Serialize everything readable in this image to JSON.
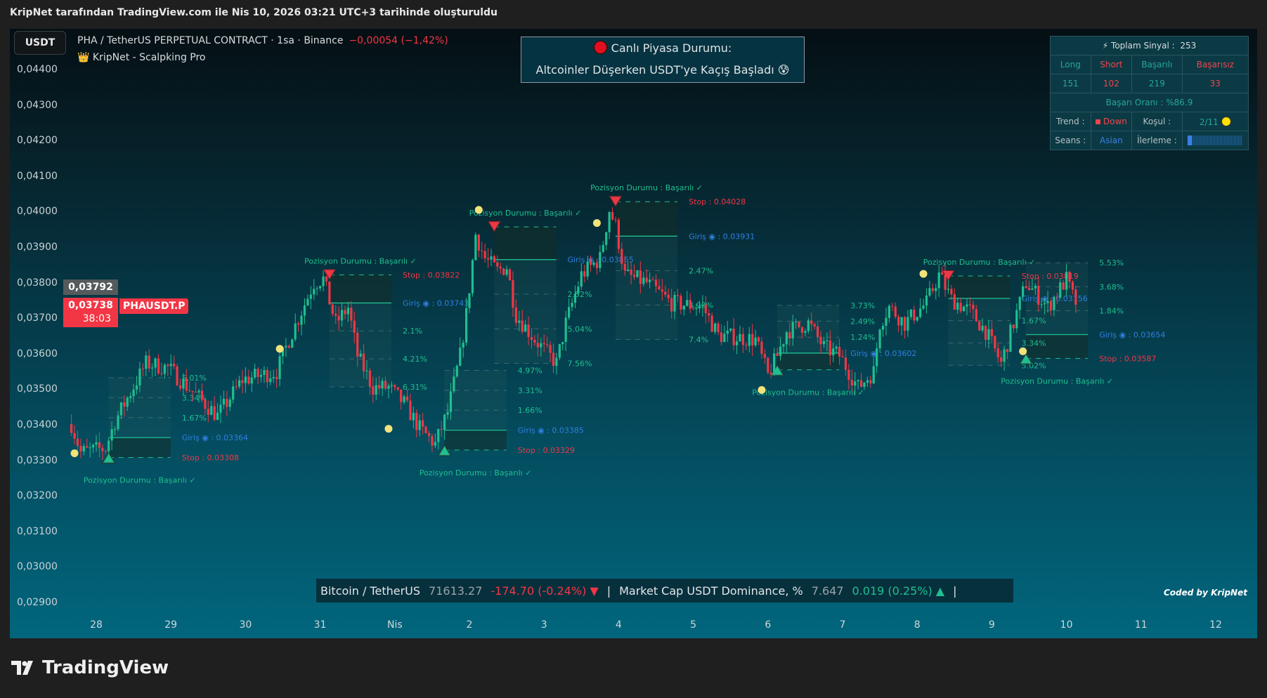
{
  "header": {
    "title": "KripNet tarafından TradingView.com ile Nis 10, 2026 03:21 UTC+3 tarihinde oluşturuldu"
  },
  "chart": {
    "currency_button": "USDT",
    "symbol": "PHA / TetherUS PERPETUAL CONTRACT · 1sa · Binance",
    "change": "−0,00054 (−1,42%)",
    "indicator_icon": "crown-icon",
    "indicator_emoji": "👑",
    "indicator": "KripNet - Scalpking Pro",
    "price_axis": [
      "0,04400",
      "0,04300",
      "0,04200",
      "0,04100",
      "0,04000",
      "0,03900",
      "0,03800",
      "0,03700",
      "0,03600",
      "0,03500",
      "0,03400",
      "0,03300",
      "0,03200",
      "0,03100",
      "0,03000",
      "0,02900"
    ],
    "time_axis": [
      "28",
      "29",
      "30",
      "31",
      "Nis",
      "2",
      "3",
      "4",
      "5",
      "6",
      "7",
      "8",
      "9",
      "10",
      "11",
      "12"
    ],
    "price_tags": {
      "crosshair": "0,03792",
      "last": "0,03738",
      "countdown": "38:03",
      "symbol": "PHAUSDT.P"
    },
    "watermark": "Coded by KripNet"
  },
  "market_banner": {
    "title": "Canlı Piyasa Durumu:",
    "message": "Altcoinler Düşerken USDT'ye Kaçış Başladı 😰",
    "status_icon": "red-circle-icon"
  },
  "stats_panel": {
    "total_label": "⚡ Toplam Sinyal :",
    "total": "253",
    "headers": [
      "Long",
      "Short",
      "Başarılı",
      "Başarısız"
    ],
    "values": [
      "151",
      "102",
      "219",
      "33"
    ],
    "success_rate": "Başarı Oranı : %86.9",
    "trend_label": "Trend :",
    "trend": "Down",
    "condition_label": "Koşul :",
    "condition": "2/11",
    "session_label": "Seans :",
    "session": "Asian",
    "progress_label": "İlerleme :",
    "progress": 0.07
  },
  "ticker": {
    "btc_name": "Bitcoin / TetherUS",
    "btc_price": "71613.27",
    "btc_change": "-174.70 (-0.24%) ▼",
    "sep": "|",
    "dom_name": "Market Cap USDT Dominance, %",
    "dom_value": "7.647",
    "dom_change": "0.019 (0.25%) ▲"
  },
  "footer": {
    "logo": "TradingView"
  },
  "colors": {
    "up": "#1fbf8f",
    "down": "#f23645",
    "entry": "#2f7fe0",
    "accent": "#26a69a"
  },
  "chart_data": {
    "type": "candlestick",
    "ylim": [
      0.029,
      0.0445
    ],
    "path": [
      [
        "03-27 16:00",
        0.03402
      ],
      [
        "03-27 19:00",
        0.03323
      ],
      [
        "03-28 03:00",
        0.03334
      ],
      [
        "03-28 06:00",
        0.0341
      ],
      [
        "03-28 16:00",
        0.03573
      ],
      [
        "03-28 23:00",
        0.03561
      ],
      [
        "03-29 11:00",
        0.03459
      ],
      [
        "03-29 15:00",
        0.03425
      ],
      [
        "03-29 23:00",
        0.03527
      ],
      [
        "03-30 10:00",
        0.0355
      ],
      [
        "03-30 14:00",
        0.0364
      ],
      [
        "03-30 22:00",
        0.038
      ],
      [
        "03-31 01:00",
        0.0381
      ],
      [
        "03-31 05:00",
        0.03686
      ],
      [
        "03-31 09:00",
        0.0373
      ],
      [
        "03-31 12:00",
        0.03595
      ],
      [
        "03-31 17:00",
        0.03505
      ],
      [
        "03-31 22:00",
        0.03505
      ],
      [
        "04-01 03:00",
        0.0346
      ],
      [
        "04-01 08:00",
        0.0339
      ],
      [
        "04-01 13:00",
        0.03345
      ],
      [
        "04-01 17:00",
        0.03436
      ],
      [
        "04-01 21:00",
        0.03595
      ],
      [
        "04-01 23:00",
        0.0371
      ],
      [
        "04-02 02:00",
        0.03936
      ],
      [
        "04-02 05:00",
        0.03868
      ],
      [
        "04-02 09:00",
        0.03834
      ],
      [
        "04-02 12:00",
        0.03845
      ],
      [
        "04-02 15:00",
        0.0371
      ],
      [
        "04-02 21:00",
        0.0364
      ],
      [
        "04-03 04:00",
        0.03573
      ],
      [
        "04-03 07:00",
        0.03686
      ],
      [
        "04-03 12:00",
        0.03822
      ],
      [
        "04-03 18:00",
        0.03868
      ],
      [
        "04-03 21:00",
        0.04005
      ],
      [
        "04-03 23:00",
        0.0396
      ],
      [
        "04-04 02:00",
        0.03822
      ],
      [
        "04-04 09:00",
        0.038
      ],
      [
        "04-04 17:00",
        0.03743
      ],
      [
        "04-05 03:00",
        0.03732
      ],
      [
        "04-05 08:00",
        0.03652
      ],
      [
        "04-05 20:00",
        0.0364
      ],
      [
        "04-06 00:00",
        0.03539
      ],
      [
        "04-06 03:00",
        0.03595
      ],
      [
        "04-06 06:00",
        0.03664
      ],
      [
        "04-06 13:00",
        0.03686
      ],
      [
        "04-06 18:00",
        0.03618
      ],
      [
        "04-06 23:00",
        0.03595
      ],
      [
        "04-07 05:00",
        0.03505
      ],
      [
        "04-07 10:00",
        0.0355
      ],
      [
        "04-07 12:00",
        0.03686
      ],
      [
        "04-07 15:00",
        0.03732
      ],
      [
        "04-07 20:00",
        0.03686
      ],
      [
        "04-08 03:00",
        0.03743
      ],
      [
        "04-08 07:00",
        0.03822
      ],
      [
        "04-08 11:00",
        0.03754
      ],
      [
        "04-08 17:00",
        0.0372
      ],
      [
        "04-08 22:00",
        0.03664
      ],
      [
        "04-09 03:00",
        0.03573
      ],
      [
        "04-09 07:00",
        0.03686
      ],
      [
        "04-09 11:00",
        0.038
      ],
      [
        "04-09 18:00",
        0.03732
      ],
      [
        "04-10 00:00",
        0.0381
      ],
      [
        "04-10 03:00",
        0.03738
      ]
    ],
    "labels": {
      "entry": "Giriş ◉ : ",
      "stop": "Stop : ",
      "status": "Pozisyon Durumu :  Başarılı ✓"
    },
    "signals": [
      {
        "side": "long",
        "time": "03-28 04:00",
        "entry": 0.03364,
        "stop": 0.03308,
        "stop_shown": true,
        "targets": [
          1.67,
          3.34,
          5.01
        ]
      },
      {
        "side": "short",
        "time": "03-31 03:00",
        "entry": 0.03743,
        "stop": 0.03822,
        "stop_shown": true,
        "targets": [
          2.1,
          4.21,
          6.31
        ]
      },
      {
        "side": "long",
        "time": "04-01 16:00",
        "entry": 0.03385,
        "stop": 0.03329,
        "stop_shown": true,
        "targets": [
          1.66,
          3.31,
          4.97
        ]
      },
      {
        "side": "short",
        "time": "04-02 08:00",
        "entry": 0.03865,
        "stop": 0.03957,
        "stop_shown": false,
        "targets": [
          2.52,
          5.04,
          7.56
        ]
      },
      {
        "side": "short",
        "time": "04-03 23:00",
        "entry": 0.03931,
        "stop": 0.04028,
        "stop_shown": true,
        "targets": [
          2.47,
          4.93,
          7.4
        ]
      },
      {
        "side": "long",
        "time": "04-06 03:00",
        "entry": 0.03602,
        "stop": 0.03555,
        "stop_shown": false,
        "targets": [
          1.24,
          2.49,
          3.73
        ]
      },
      {
        "side": "short",
        "time": "04-08 10:00",
        "entry": 0.03756,
        "stop": 0.03819,
        "stop_shown": true,
        "targets": [
          1.67,
          3.34,
          5.02
        ]
      },
      {
        "side": "long",
        "time": "04-09 11:00",
        "entry": 0.03654,
        "stop": 0.03587,
        "stop_shown": true,
        "targets": [
          1.84,
          3.68,
          5.53
        ]
      }
    ],
    "dots": [
      [
        "03-27 17:00",
        0.0332
      ],
      [
        "03-30 11:00",
        0.03614
      ],
      [
        "03-31 22:00",
        0.03389
      ],
      [
        "04-02 03:00",
        0.04005
      ],
      [
        "04-03 17:00",
        0.03968
      ],
      [
        "04-05 22:00",
        0.03498
      ],
      [
        "04-08 02:00",
        0.03825
      ],
      [
        "04-09 10:00",
        0.03607
      ]
    ]
  }
}
